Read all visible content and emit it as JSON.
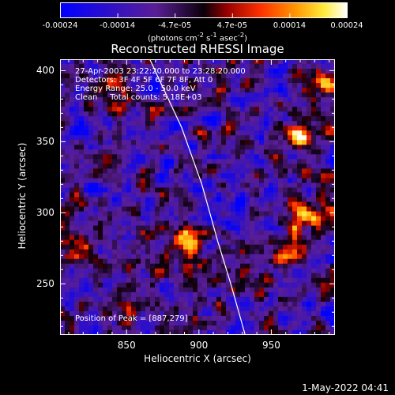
{
  "colorbar": {
    "ticks": [
      "-0.00024",
      "-0.00014",
      "-4.7e-05",
      "4.7e-05",
      "0.00014",
      "0.00024"
    ],
    "range": [
      -0.00024,
      0.00024
    ],
    "units_html": "(photons cm<sup>-2</sup> s<sup>-1</sup> asec<sup>-2</sup>)"
  },
  "chart_data": {
    "type": "heatmap",
    "title": "Reconstructed RHESSI Image",
    "xlabel": "Heliocentric X (arcsec)",
    "ylabel": "Heliocentric Y (arcsec)",
    "xlim": [
      804,
      994
    ],
    "ylim": [
      214,
      408
    ],
    "xticks": [
      850,
      900,
      950
    ],
    "yticks": [
      250,
      300,
      350,
      400
    ],
    "peak_position": [
      887,
      279
    ],
    "limb_curve": [
      [
        866,
        408
      ],
      [
        888,
        360
      ],
      [
        902,
        320
      ],
      [
        913,
        280
      ],
      [
        922,
        250
      ],
      [
        932,
        214
      ]
    ],
    "info_lines": [
      "27-Apr-2003 23:22:20.000 to 23:28:20.000",
      "Detectors: 3F 4F 5F 6F 7F 8F, Att 0",
      "Energy Range: 25.0 - 50.0 keV",
      "Clean     Total counts: 5.18E+03"
    ],
    "peak_label": "Position of Peak = [887,279]"
  },
  "footer": {
    "date": "1-May-2022 04:41"
  },
  "colors": {
    "limb": "#ffffff",
    "background": "#000000"
  }
}
